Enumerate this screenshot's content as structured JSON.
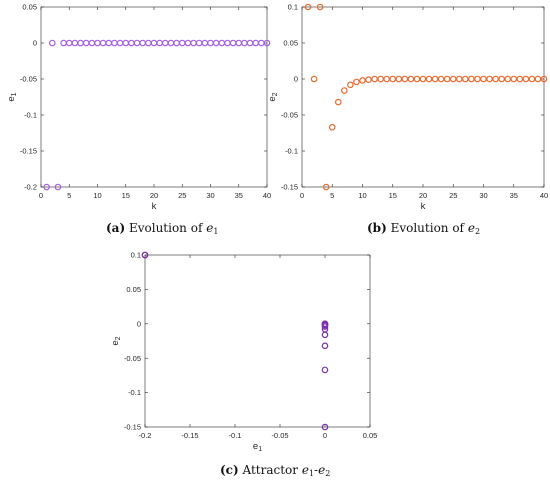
{
  "captions": {
    "a": {
      "tag": "(a)",
      "text": "Evolution of",
      "var": "e",
      "sub": "1"
    },
    "b": {
      "tag": "(b)",
      "text": "Evolution of",
      "var": "e",
      "sub": "2"
    },
    "c": {
      "tag": "(c)",
      "text": "Attractor",
      "var1": "e",
      "sub1": "1",
      "dash": "-",
      "var2": "e",
      "sub2": "2"
    }
  },
  "chart_data": [
    {
      "type": "scatter",
      "title": "",
      "xlabel": "k",
      "ylabel": "e1",
      "xlim": [
        0,
        40
      ],
      "ylim": [
        -0.2,
        0.05
      ],
      "xticks": [
        0,
        5,
        10,
        15,
        20,
        25,
        30,
        35,
        40
      ],
      "yticks": [
        0.05,
        0,
        -0.05,
        -0.1,
        -0.15,
        -0.2
      ],
      "ytick_labels": [
        "0.05",
        "0",
        "-0.05",
        "-0.1",
        "-0.15",
        "-0.2"
      ],
      "grid": false,
      "marker": "open-circle",
      "color": "#a45ee0",
      "series": [
        {
          "x": [
            1,
            2,
            3,
            4,
            5,
            6,
            7,
            8,
            9,
            10,
            11,
            12,
            13,
            14,
            15,
            16,
            17,
            18,
            19,
            20,
            21,
            22,
            23,
            24,
            25,
            26,
            27,
            28,
            29,
            30,
            31,
            32,
            33,
            34,
            35,
            36,
            37,
            38,
            39,
            40
          ],
          "y": [
            -0.2,
            0,
            -0.2,
            0,
            0,
            0,
            0,
            0,
            0,
            0,
            0,
            0,
            0,
            0,
            0,
            0,
            0,
            0,
            0,
            0,
            0,
            0,
            0,
            0,
            0,
            0,
            0,
            0,
            0,
            0,
            0,
            0,
            0,
            0,
            0,
            0,
            0,
            0,
            0,
            0
          ]
        }
      ]
    },
    {
      "type": "scatter",
      "title": "",
      "xlabel": "k",
      "ylabel": "e2",
      "xlim": [
        0,
        40
      ],
      "ylim": [
        -0.15,
        0.1
      ],
      "xticks": [
        0,
        5,
        10,
        15,
        20,
        25,
        30,
        35,
        40
      ],
      "yticks": [
        0.1,
        0.05,
        0,
        -0.05,
        -0.1,
        -0.15
      ],
      "ytick_labels": [
        "0.1",
        "0.05",
        "0",
        "-0.05",
        "-0.1",
        "-0.15"
      ],
      "grid": false,
      "marker": "open-circle",
      "color": "#e8692c",
      "series": [
        {
          "x": [
            1,
            2,
            3,
            4,
            5,
            6,
            7,
            8,
            9,
            10,
            11,
            12,
            13,
            14,
            15,
            16,
            17,
            18,
            19,
            20,
            21,
            22,
            23,
            24,
            25,
            26,
            27,
            28,
            29,
            30,
            31,
            32,
            33,
            34,
            35,
            36,
            37,
            38,
            39,
            40
          ],
          "y": [
            0.1,
            0,
            0.1,
            -0.15,
            -0.067,
            -0.032,
            -0.016,
            -0.008,
            -0.004,
            -0.002,
            -0.001,
            0,
            0,
            0,
            0,
            0,
            0,
            0,
            0,
            0,
            0,
            0,
            0,
            0,
            0,
            0,
            0,
            0,
            0,
            0,
            0,
            0,
            0,
            0,
            0,
            0,
            0,
            0,
            0,
            0
          ]
        }
      ]
    },
    {
      "type": "scatter",
      "title": "",
      "xlabel": "e1",
      "ylabel": "e2",
      "xlim": [
        -0.2,
        0.05
      ],
      "ylim": [
        -0.15,
        0.1
      ],
      "xticks": [
        -0.2,
        -0.15,
        -0.1,
        -0.05,
        0,
        0.05
      ],
      "xtick_labels": [
        "-0.2",
        "-0.15",
        "-0.1",
        "-0.05",
        "0",
        "0.05"
      ],
      "yticks": [
        0.1,
        0.05,
        0,
        -0.05,
        -0.1,
        -0.15
      ],
      "ytick_labels": [
        "0.1",
        "0.05",
        "0",
        "-0.05",
        "-0.1",
        "-0.15"
      ],
      "grid": false,
      "marker": "open-circle",
      "color": "#7b2fa8",
      "series": [
        {
          "x": [
            -0.2,
            -0.2,
            0,
            0,
            0,
            0,
            0,
            0,
            0,
            0,
            0,
            0
          ],
          "y": [
            0.1,
            0.1,
            -0.15,
            -0.067,
            -0.032,
            -0.016,
            -0.008,
            -0.004,
            -0.002,
            -0.001,
            0,
            0
          ]
        }
      ]
    }
  ]
}
